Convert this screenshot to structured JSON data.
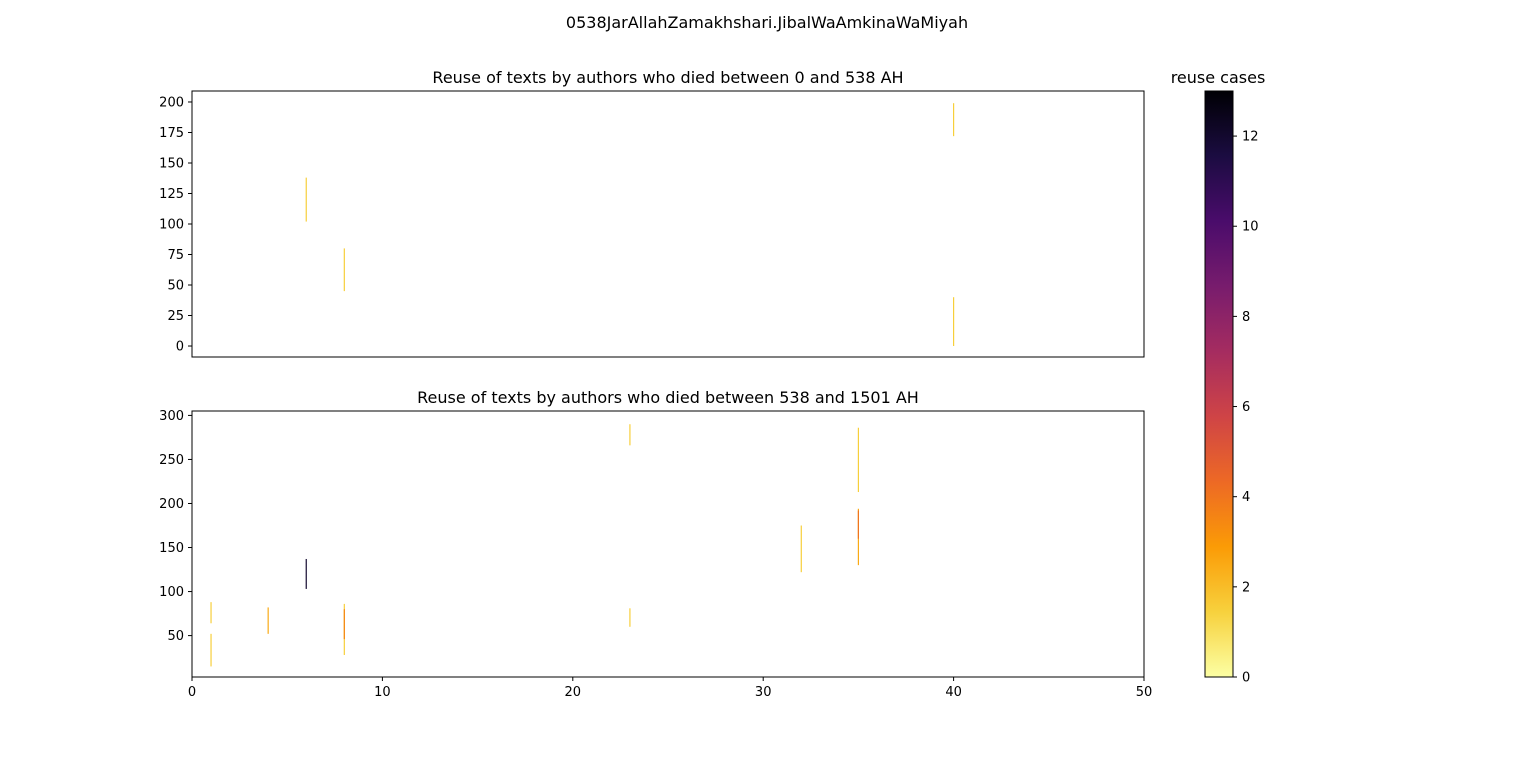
{
  "figure": {
    "suptitle": "0538JarAllahZamakhshari.JibalWaAmkinaWaMiyah"
  },
  "chart_data": [
    {
      "type": "segments",
      "title": "Reuse of texts by authors who died between 0 and 538 AH",
      "xlabel": "",
      "ylabel": "",
      "xlim": [
        0,
        50
      ],
      "ylim": [
        -9,
        209
      ],
      "x_ticks_shown": false,
      "yticks": [
        0,
        25,
        50,
        75,
        100,
        125,
        150,
        175,
        200
      ],
      "grid": false,
      "segments": [
        {
          "x": 6,
          "y0": 102,
          "y1": 138,
          "value": 1.5
        },
        {
          "x": 8,
          "y0": 45,
          "y1": 80,
          "value": 1.5
        },
        {
          "x": 40,
          "y0": 172,
          "y1": 199,
          "value": 1.5
        },
        {
          "x": 40,
          "y0": 0,
          "y1": 40,
          "value": 1.5
        }
      ]
    },
    {
      "type": "segments",
      "title": "Reuse of texts by authors who died between 538 and 1501 AH",
      "xlabel": "",
      "ylabel": "",
      "xlim": [
        0,
        50
      ],
      "ylim": [
        3,
        305
      ],
      "xticks": [
        0,
        10,
        20,
        30,
        40,
        50
      ],
      "yticks": [
        50,
        100,
        150,
        200,
        250,
        300
      ],
      "grid": false,
      "segments": [
        {
          "x": 1,
          "y0": 64,
          "y1": 88,
          "value": 1.5
        },
        {
          "x": 1,
          "y0": 15,
          "y1": 52,
          "value": 1.5
        },
        {
          "x": 4,
          "y0": 52,
          "y1": 82,
          "value": 2.5
        },
        {
          "x": 6,
          "y0": 103,
          "y1": 137,
          "value": 12
        },
        {
          "x": 8,
          "y0": 28,
          "y1": 86,
          "value": 1.5
        },
        {
          "x": 8,
          "y0": 46,
          "y1": 80,
          "value": 3.5
        },
        {
          "x": 23,
          "y0": 266,
          "y1": 290,
          "value": 1.5
        },
        {
          "x": 23,
          "y0": 60,
          "y1": 81,
          "value": 1.5
        },
        {
          "x": 32,
          "y0": 122,
          "y1": 175,
          "value": 1.5
        },
        {
          "x": 35,
          "y0": 213,
          "y1": 286,
          "value": 1.5
        },
        {
          "x": 35,
          "y0": 130,
          "y1": 194,
          "value": 2.5
        },
        {
          "x": 35,
          "y0": 160,
          "y1": 192,
          "value": 4
        }
      ]
    }
  ],
  "colorbar": {
    "title": "reuse cases",
    "min": 0,
    "max": 13,
    "ticks": [
      0,
      2,
      4,
      6,
      8,
      10,
      12
    ],
    "colormap": "inferno_r",
    "stops": [
      "#fcffa4",
      "#f7d13d",
      "#fb9b06",
      "#ed6925",
      "#cf4446",
      "#a52c60",
      "#781c6d",
      "#4a0c6b",
      "#1b0c41",
      "#000004"
    ]
  }
}
